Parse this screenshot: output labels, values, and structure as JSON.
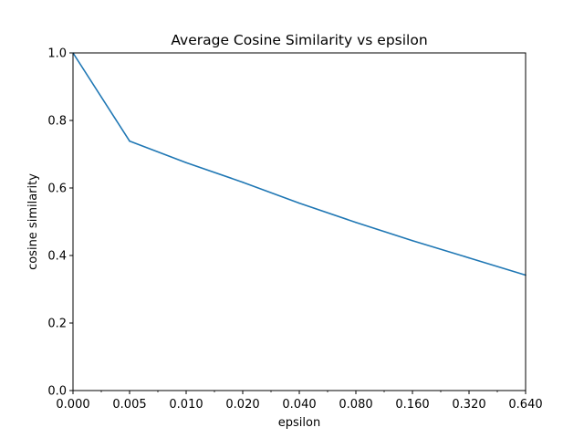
{
  "chart_data": {
    "type": "line",
    "title": "Average Cosine Similarity vs epsilon",
    "xlabel": "epsilon",
    "ylabel": "cosine similarity",
    "x_tick_labels": [
      "0.000",
      "0.005",
      "0.010",
      "0.020",
      "0.040",
      "0.080",
      "0.160",
      "0.320",
      "0.640"
    ],
    "x": [
      0.0,
      0.005,
      0.01,
      0.02,
      0.04,
      0.08,
      0.16,
      0.32,
      0.64
    ],
    "y_tick_labels": [
      "0.0",
      "0.2",
      "0.4",
      "0.6",
      "0.8",
      "1.0"
    ],
    "y_ticks": [
      0.0,
      0.2,
      0.4,
      0.6,
      0.8,
      1.0
    ],
    "ylim": [
      0.0,
      1.0
    ],
    "x_scale": "categorical",
    "grid": false,
    "legend": "none",
    "series": [
      {
        "color": "#1f77b4",
        "values": [
          1.0,
          0.739,
          0.675,
          0.617,
          0.555,
          0.498,
          0.444,
          0.393,
          0.342
        ]
      }
    ]
  }
}
